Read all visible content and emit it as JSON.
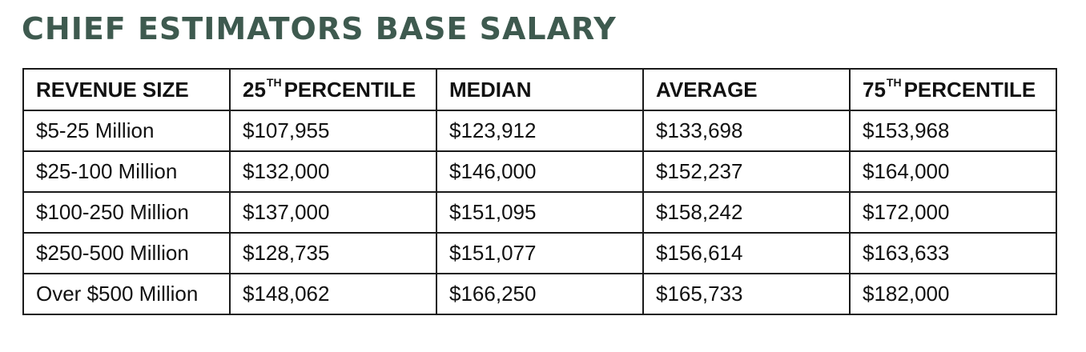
{
  "title": "CHIEF ESTIMATORS BASE SALARY",
  "chart_data": {
    "type": "table",
    "title": "CHIEF ESTIMATORS BASE SALARY",
    "columns": [
      {
        "pre": "REVENUE SIZE",
        "sup": "",
        "post": ""
      },
      {
        "pre": "25",
        "sup": "TH",
        "post": "PERCENTILE"
      },
      {
        "pre": "MEDIAN",
        "sup": "",
        "post": ""
      },
      {
        "pre": "AVERAGE",
        "sup": "",
        "post": ""
      },
      {
        "pre": "75",
        "sup": "TH",
        "post": "PERCENTILE"
      }
    ],
    "rows": [
      [
        "$5-25 Million",
        "$107,955",
        "$123,912",
        "$133,698",
        "$153,968"
      ],
      [
        "$25-100 Million",
        "$132,000",
        "$146,000",
        "$152,237",
        "$164,000"
      ],
      [
        "$100-250 Million",
        "$137,000",
        "$151,095",
        "$158,242",
        "$172,000"
      ],
      [
        "$250-500 Million",
        "$128,735",
        "$151,077",
        "$156,614",
        "$163,633"
      ],
      [
        "Over $500 Million",
        "$148,062",
        "$166,250",
        "$165,733",
        "$182,000"
      ]
    ]
  }
}
